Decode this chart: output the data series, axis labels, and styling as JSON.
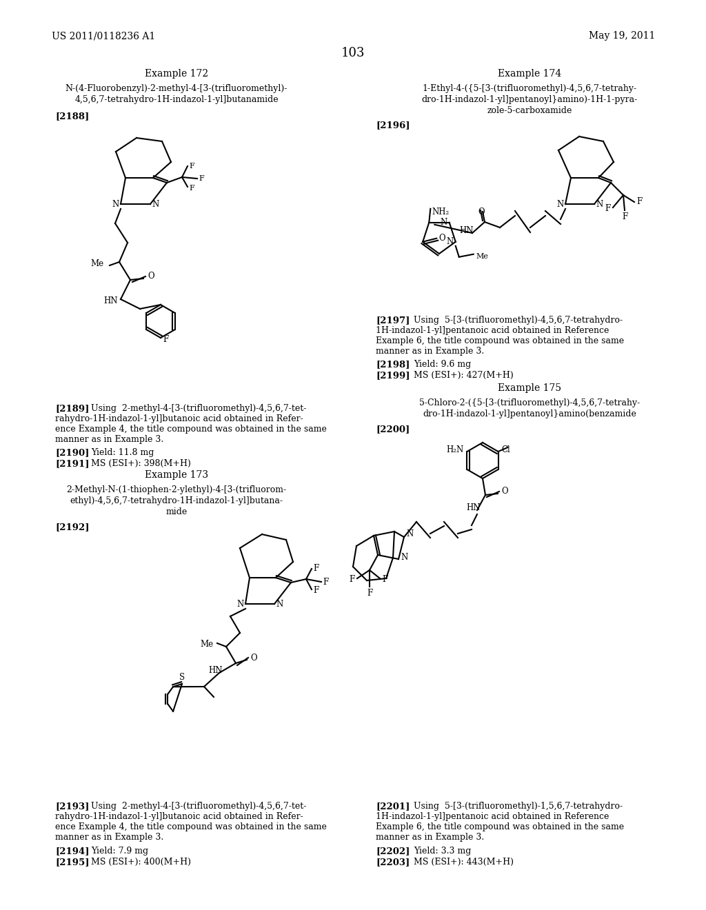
{
  "page_number": "103",
  "patent_number": "US 2011/0118236 A1",
  "patent_date": "May 19, 2011",
  "background_color": "#ffffff"
}
